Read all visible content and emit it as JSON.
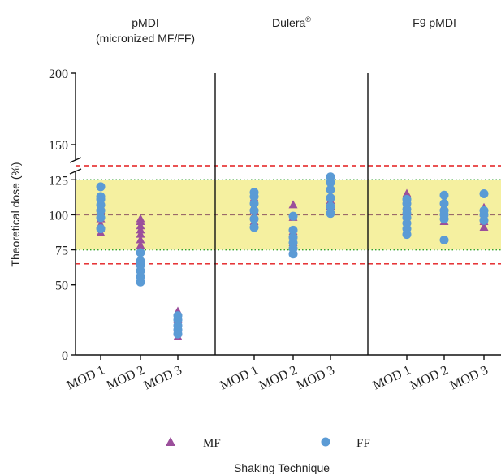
{
  "chart_data": {
    "type": "scatter",
    "xlabel": "Shaking Technique",
    "ylabel": "Theoretical dose (%)",
    "y_ticks": [
      0,
      50,
      75,
      100,
      125,
      150,
      200
    ],
    "y_axis_break": [
      135,
      150
    ],
    "ylim": [
      0,
      200
    ],
    "bands": {
      "inner": {
        "min": 75,
        "max": 125,
        "color": "#f5f0a0",
        "line_color": "#33a02c"
      },
      "outer": {
        "min": 65,
        "max": 135,
        "line_color": "#e31a1c"
      },
      "target": {
        "value": 100,
        "line_color": "#9a6a6a"
      }
    },
    "panels": [
      {
        "title": "pMDI",
        "subtitle": "(micronized MF/FF)",
        "categories": [
          "MOD 1",
          "MOD 2",
          "MOD 3"
        ],
        "series": [
          {
            "name": "MF",
            "values": [
              [
                87,
                90,
                93,
                97,
                100,
                103,
                106
              ],
              [
                78,
                82,
                86,
                89,
                92,
                95,
                97
              ],
              [
                13,
                16,
                19,
                22,
                25,
                31
              ]
            ]
          },
          {
            "name": "FF",
            "values": [
              [
                90,
                98,
                103,
                107,
                111,
                113,
                120
              ],
              [
                52,
                56,
                60,
                64,
                67,
                73
              ],
              [
                15,
                18,
                21,
                25,
                28
              ]
            ]
          }
        ]
      },
      {
        "title": "Dulera",
        "title_superscript": "®",
        "categories": [
          "MOD 1",
          "MOD 2",
          "MOD 3"
        ],
        "series": [
          {
            "name": "MF",
            "values": [
              [
                95,
                100,
                103,
                106,
                112
              ],
              [
                75,
                80,
                85,
                88,
                98,
                107
              ],
              [
                102,
                106,
                110,
                114
              ]
            ]
          },
          {
            "name": "FF",
            "values": [
              [
                91,
                97,
                103,
                108,
                113,
                116
              ],
              [
                72,
                76,
                80,
                84,
                89,
                99
              ],
              [
                101,
                106,
                112,
                118,
                123,
                127
              ]
            ]
          }
        ]
      },
      {
        "title": "F9 pMDI",
        "categories": [
          "MOD 1",
          "MOD 2",
          "MOD 3"
        ],
        "series": [
          {
            "name": "MF",
            "values": [
              [
                92,
                96,
                99,
                102,
                106,
                110,
                115
              ],
              [
                95,
                99,
                103,
                106,
                110
              ],
              [
                91,
                95,
                98,
                101,
                105
              ]
            ]
          },
          {
            "name": "FF",
            "values": [
              [
                86,
                90,
                94,
                98,
                101,
                104,
                108,
                111
              ],
              [
                82,
                97,
                100,
                103,
                108,
                114
              ],
              [
                96,
                100,
                103,
                115
              ]
            ]
          }
        ]
      }
    ],
    "legend": {
      "placement": "bottom",
      "items": [
        {
          "label": "MF",
          "marker": "triangle",
          "color": "#9b4f9b"
        },
        {
          "label": "FF",
          "marker": "circle",
          "color": "#5b9bd5"
        }
      ]
    },
    "colors": {
      "MF": "#9b4f9b",
      "FF": "#5b9bd5"
    }
  }
}
